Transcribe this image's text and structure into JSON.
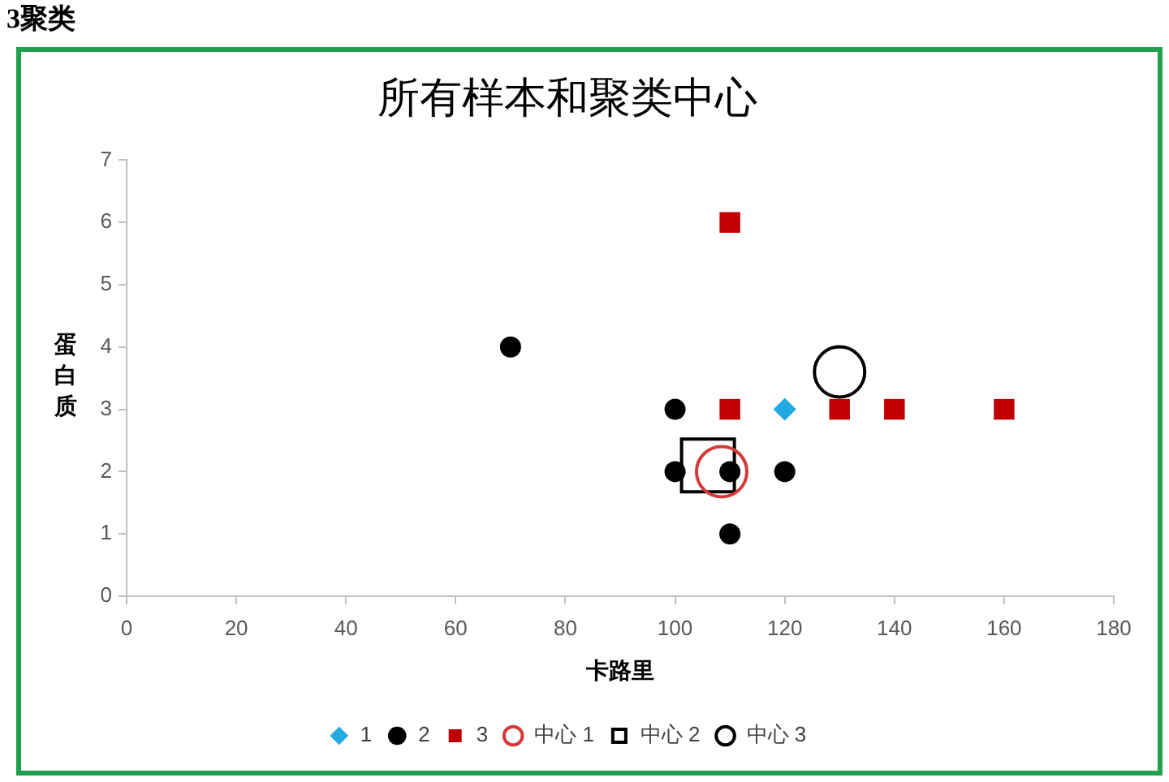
{
  "chart_data": {
    "type": "scatter",
    "title": "所有样本和聚类中心",
    "xlabel": "卡路里",
    "ylabel": "蛋白质",
    "annotations": [
      "3聚类"
    ],
    "xlim": [
      0,
      180
    ],
    "xticks": [
      0,
      20,
      40,
      60,
      80,
      100,
      120,
      140,
      160,
      180
    ],
    "ylim": [
      0,
      7
    ],
    "yticks": [
      0,
      1,
      2,
      3,
      4,
      5,
      6,
      7
    ],
    "grid": false,
    "legend": "bottom",
    "series": [
      {
        "name": "1",
        "color": "#21a9e1",
        "marker": "diamond",
        "x": [
          120
        ],
        "values": [
          3
        ]
      },
      {
        "name": "2",
        "color": "#000000",
        "marker": "circle",
        "x": [
          70,
          100,
          100,
          110,
          120,
          110
        ],
        "values": [
          4,
          3,
          2,
          2,
          2,
          1
        ]
      },
      {
        "name": "3",
        "color": "#c00000",
        "marker": "square",
        "x": [
          110,
          110,
          130,
          140,
          160
        ],
        "values": [
          6,
          3,
          3,
          3,
          3
        ]
      },
      {
        "name": "中心 1",
        "color": "#d43a3a",
        "marker": "circle",
        "x": [
          108.5
        ],
        "values": [
          2
        ]
      },
      {
        "name": "中心 2",
        "color": "#000000",
        "marker": "square",
        "x": [
          106
        ],
        "values": [
          2.1
        ]
      },
      {
        "name": "中心 3",
        "color": "#000000",
        "marker": "circle",
        "x": [
          130
        ],
        "values": [
          3.6
        ]
      }
    ]
  }
}
